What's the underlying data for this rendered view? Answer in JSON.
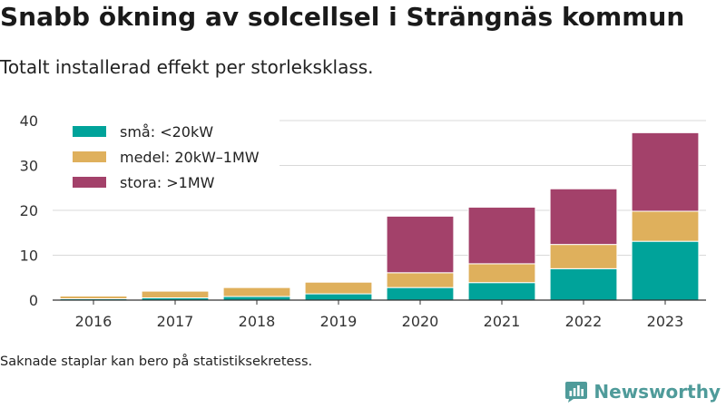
{
  "title": "Snabb ökning av solcellsel i Strängnäs kommun",
  "subtitle": "Totalt installerad effekt per storleksklass.",
  "footnote": "Saknade staplar kan bero på statistiksekretess.",
  "brand": {
    "name": "Newsworthy",
    "icon": "newsworthy-logo-icon",
    "color": "#4f9b9a"
  },
  "chart_data": {
    "type": "bar",
    "stacked": true,
    "categories": [
      "2016",
      "2017",
      "2018",
      "2019",
      "2020",
      "2021",
      "2022",
      "2023"
    ],
    "series": [
      {
        "name": "små: <20kW",
        "color": "#00a39a",
        "values": [
          0.3,
          0.5,
          0.8,
          1.4,
          2.8,
          3.9,
          7.0,
          13.1
        ]
      },
      {
        "name": "medel: 20kW–1MW",
        "color": "#dfb05c",
        "values": [
          0.6,
          1.5,
          2.0,
          2.6,
          3.3,
          4.2,
          5.4,
          6.7
        ]
      },
      {
        "name": "stora: >1MW",
        "color": "#a3416a",
        "values": [
          0,
          0,
          0,
          0,
          12.6,
          12.6,
          12.4,
          17.5
        ]
      }
    ],
    "ylim": [
      0,
      40
    ],
    "yticks": [
      0,
      10,
      20,
      30,
      40
    ],
    "grid": true,
    "legend_position": "top-left",
    "xlabel": "",
    "ylabel": ""
  }
}
